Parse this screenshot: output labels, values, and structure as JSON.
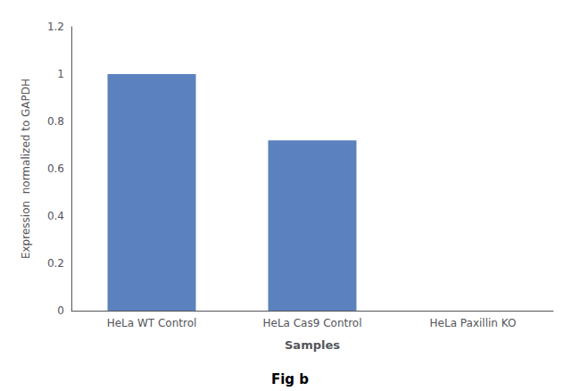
{
  "chart_data": {
    "type": "bar",
    "categories": [
      "HeLa WT Control",
      "HeLa Cas9 Control",
      "HeLa Paxillin KO"
    ],
    "values": [
      1.0,
      0.72,
      0.0
    ],
    "color": "#5b82be",
    "xlabel": "Samples",
    "ylabel": "Expression  normalized to GAPDH",
    "ylim": [
      0,
      1.2
    ],
    "yticks": [
      0,
      0.2,
      0.4,
      0.6,
      0.8,
      1.0,
      1.2
    ],
    "grid": false,
    "annotations": [
      "Fig b"
    ]
  }
}
